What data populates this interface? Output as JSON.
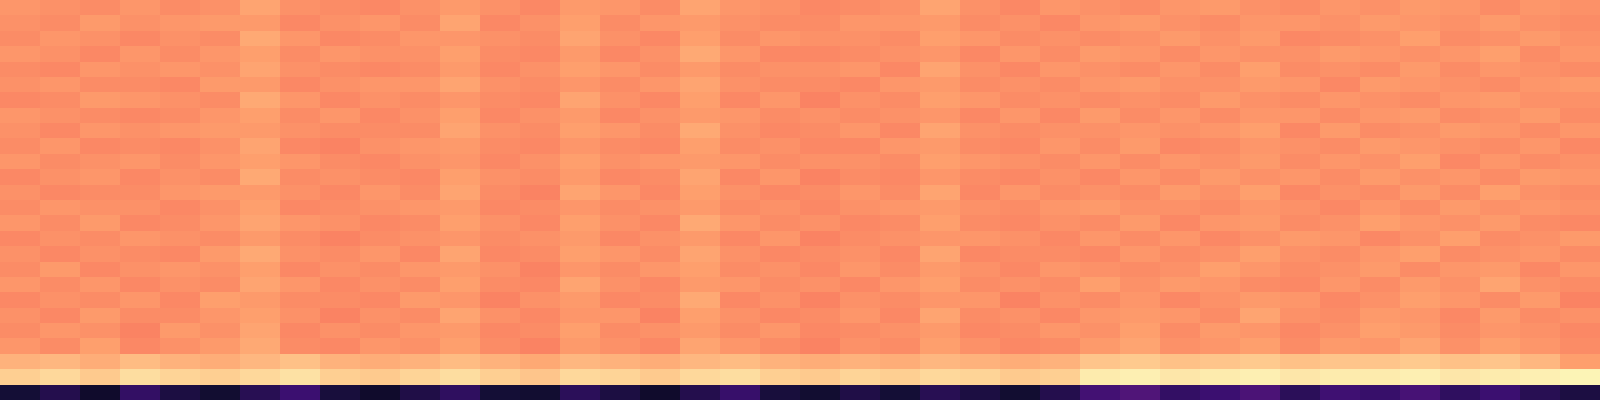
{
  "chart_data": {
    "type": "heatmap",
    "color": "magma",
    "zlim": [
      0,
      100
    ],
    "tick_labels": false,
    "cells": [
      [
        10,
        14,
        8,
        18,
        12,
        9,
        15,
        20,
        11,
        8,
        13,
        17,
        10,
        9,
        16,
        12,
        8,
        14,
        19,
        11,
        9,
        13,
        10,
        15,
        12,
        9,
        14,
        22,
        25,
        18,
        20,
        24,
        16,
        21,
        19,
        23,
        17,
        20,
        15,
        12
      ],
      [
        90,
        92,
        89,
        93,
        91,
        90,
        92,
        94,
        90,
        89,
        91,
        93,
        90,
        88,
        92,
        91,
        89,
        92,
        93,
        90,
        89,
        91,
        90,
        92,
        91,
        89,
        90,
        96,
        97,
        95,
        96,
        97,
        95,
        96,
        96,
        97,
        95,
        96,
        97,
        98
      ],
      [
        84,
        85,
        83,
        86,
        84,
        83,
        85,
        87,
        84,
        83,
        84,
        86,
        84,
        82,
        85,
        84,
        83,
        85,
        86,
        84,
        83,
        84,
        83,
        85,
        84,
        83,
        84,
        88,
        89,
        87,
        88,
        89,
        87,
        88,
        88,
        89,
        87,
        88,
        85,
        80
      ],
      [
        78,
        76,
        80,
        75,
        77,
        79,
        82,
        76,
        75,
        78,
        77,
        80,
        76,
        74,
        79,
        77,
        75,
        81,
        78,
        76,
        74,
        77,
        76,
        80,
        77,
        75,
        76,
        79,
        81,
        77,
        78,
        80,
        76,
        79,
        78,
        81,
        77,
        80,
        78,
        76
      ],
      [
        76,
        78,
        77,
        74,
        79,
        77,
        81,
        75,
        77,
        76,
        78,
        79,
        75,
        76,
        80,
        76,
        77,
        79,
        76,
        78,
        75,
        76,
        77,
        79,
        75,
        76,
        78,
        77,
        80,
        76,
        79,
        78,
        75,
        77,
        80,
        79,
        76,
        78,
        77,
        75
      ],
      [
        77,
        75,
        79,
        76,
        76,
        78,
        80,
        77,
        74,
        77,
        76,
        81,
        77,
        75,
        78,
        78,
        74,
        80,
        77,
        75,
        76,
        78,
        75,
        81,
        76,
        77,
        75,
        78,
        79,
        78,
        76,
        81,
        77,
        76,
        79,
        78,
        75,
        79,
        76,
        77
      ],
      [
        75,
        77,
        76,
        78,
        75,
        80,
        79,
        76,
        76,
        75,
        79,
        78,
        74,
        77,
        79,
        75,
        76,
        82,
        75,
        77,
        74,
        77,
        76,
        78,
        78,
        74,
        77,
        76,
        78,
        75,
        77,
        79,
        78,
        75,
        77,
        80,
        78,
        76,
        79,
        74
      ],
      [
        78,
        76,
        78,
        75,
        77,
        76,
        81,
        78,
        75,
        77,
        76,
        80,
        76,
        75,
        81,
        77,
        75,
        79,
        78,
        76,
        77,
        75,
        78,
        80,
        76,
        77,
        76,
        80,
        77,
        79,
        78,
        76,
        75,
        78,
        76,
        79,
        77,
        81,
        77,
        76
      ],
      [
        76,
        79,
        75,
        77,
        78,
        77,
        80,
        75,
        77,
        76,
        78,
        79,
        77,
        74,
        78,
        76,
        78,
        80,
        76,
        77,
        75,
        78,
        76,
        79,
        77,
        75,
        78,
        77,
        76,
        77,
        80,
        78,
        76,
        77,
        79,
        76,
        78,
        79,
        75,
        78
      ],
      [
        77,
        75,
        77,
        76,
        75,
        79,
        82,
        77,
        76,
        78,
        75,
        81,
        75,
        76,
        80,
        78,
        76,
        81,
        77,
        75,
        76,
        77,
        75,
        81,
        75,
        76,
        76,
        75,
        78,
        76,
        77,
        80,
        77,
        76,
        78,
        80,
        76,
        77,
        78,
        76
      ],
      [
        75,
        77,
        76,
        78,
        77,
        76,
        79,
        76,
        74,
        76,
        77,
        78,
        76,
        77,
        79,
        75,
        77,
        79,
        75,
        78,
        74,
        76,
        77,
        78,
        78,
        77,
        75,
        78,
        76,
        78,
        75,
        77,
        79,
        78,
        75,
        77,
        80,
        76,
        77,
        79
      ],
      [
        78,
        76,
        79,
        75,
        76,
        78,
        81,
        78,
        77,
        75,
        76,
        80,
        77,
        75,
        80,
        77,
        75,
        82,
        78,
        76,
        77,
        75,
        76,
        80,
        76,
        75,
        77,
        76,
        79,
        75,
        78,
        79,
        76,
        77,
        80,
        78,
        77,
        79,
        76,
        75
      ],
      [
        76,
        78,
        77,
        77,
        75,
        77,
        80,
        75,
        76,
        77,
        78,
        79,
        75,
        76,
        78,
        76,
        77,
        79,
        76,
        77,
        75,
        77,
        78,
        79,
        77,
        76,
        78,
        79,
        77,
        77,
        76,
        78,
        77,
        75,
        78,
        76,
        79,
        77,
        78,
        77
      ],
      [
        77,
        75,
        76,
        76,
        78,
        79,
        79,
        77,
        75,
        78,
        76,
        81,
        76,
        74,
        81,
        78,
        75,
        80,
        77,
        75,
        76,
        78,
        76,
        81,
        75,
        78,
        76,
        77,
        76,
        79,
        77,
        80,
        75,
        77,
        76,
        79,
        76,
        80,
        77,
        76
      ],
      [
        75,
        77,
        78,
        75,
        77,
        76,
        82,
        76,
        77,
        76,
        75,
        80,
        77,
        76,
        79,
        75,
        76,
        81,
        75,
        78,
        74,
        76,
        75,
        78,
        76,
        75,
        77,
        75,
        78,
        76,
        79,
        77,
        78,
        76,
        79,
        77,
        78,
        76,
        79,
        78
      ],
      [
        78,
        76,
        77,
        78,
        76,
        78,
        80,
        78,
        76,
        75,
        77,
        78,
        75,
        77,
        80,
        77,
        78,
        79,
        78,
        76,
        77,
        77,
        76,
        80,
        78,
        77,
        76,
        78,
        76,
        78,
        77,
        79,
        76,
        78,
        77,
        80,
        75,
        78,
        76,
        77
      ],
      [
        76,
        78,
        75,
        76,
        75,
        77,
        81,
        75,
        74,
        77,
        78,
        79,
        76,
        75,
        78,
        76,
        75,
        80,
        76,
        77,
        75,
        75,
        78,
        79,
        76,
        75,
        78,
        76,
        79,
        75,
        76,
        78,
        77,
        76,
        79,
        78,
        77,
        76,
        78,
        75
      ],
      [
        77,
        75,
        78,
        77,
        78,
        79,
        79,
        77,
        76,
        76,
        76,
        81,
        77,
        76,
        80,
        78,
        76,
        82,
        77,
        75,
        76,
        78,
        75,
        81,
        77,
        76,
        77,
        77,
        78,
        77,
        78,
        80,
        75,
        79,
        76,
        77,
        79,
        78,
        76,
        78
      ],
      [
        78,
        77,
        76,
        75,
        76,
        78,
        80,
        76,
        78,
        75,
        77,
        80,
        75,
        77,
        79,
        75,
        77,
        79,
        78,
        76,
        77,
        76,
        77,
        78,
        75,
        78,
        75,
        79,
        76,
        78,
        76,
        78,
        78,
        76,
        78,
        79,
        76,
        77,
        79,
        76
      ],
      [
        75,
        76,
        79,
        78,
        77,
        76,
        82,
        78,
        75,
        77,
        76,
        78,
        76,
        75,
        81,
        77,
        75,
        80,
        75,
        78,
        74,
        77,
        76,
        80,
        78,
        76,
        77,
        76,
        77,
        76,
        79,
        77,
        76,
        78,
        77,
        76,
        78,
        79,
        77,
        77
      ],
      [
        77,
        78,
        76,
        76,
        75,
        79,
        79,
        75,
        77,
        78,
        78,
        81,
        77,
        76,
        78,
        76,
        78,
        81,
        77,
        76,
        76,
        75,
        78,
        79,
        76,
        77,
        76,
        78,
        79,
        77,
        77,
        79,
        78,
        75,
        79,
        78,
        77,
        76,
        78,
        79
      ],
      [
        76,
        75,
        78,
        77,
        78,
        77,
        81,
        77,
        76,
        75,
        76,
        79,
        75,
        77,
        80,
        78,
        76,
        79,
        76,
        77,
        77,
        78,
        75,
        81,
        77,
        75,
        78,
        77,
        76,
        78,
        76,
        80,
        76,
        77,
        76,
        79,
        76,
        78,
        77,
        76
      ],
      [
        78,
        77,
        75,
        78,
        76,
        78,
        80,
        76,
        78,
        77,
        77,
        80,
        76,
        75,
        79,
        75,
        77,
        82,
        78,
        75,
        75,
        76,
        77,
        78,
        75,
        78,
        76,
        79,
        78,
        76,
        78,
        77,
        77,
        79,
        78,
        77,
        78,
        80,
        76,
        78
      ],
      [
        76,
        78,
        77,
        75,
        77,
        76,
        82,
        78,
        75,
        76,
        78,
        78,
        77,
        76,
        81,
        77,
        75,
        80,
        76,
        78,
        77,
        77,
        76,
        80,
        78,
        76,
        77,
        76,
        77,
        79,
        77,
        79,
        75,
        76,
        77,
        80,
        76,
        77,
        79,
        77
      ],
      [
        77,
        76,
        79,
        77,
        78,
        79,
        79,
        75,
        77,
        78,
        76,
        81,
        75,
        77,
        80,
        76,
        78,
        79,
        77,
        76,
        76,
        78,
        78,
        79,
        76,
        77,
        75,
        78,
        79,
        77,
        76,
        78,
        78,
        77,
        79,
        78,
        77,
        79,
        77,
        76
      ],
      [
        78,
        77,
        76,
        78,
        76,
        77,
        81,
        77,
        76,
        75,
        77,
        79,
        77,
        75,
        79,
        78,
        76,
        81,
        78,
        77,
        75,
        76,
        77,
        81,
        77,
        75,
        78,
        77,
        76,
        78,
        79,
        77,
        76,
        78,
        77,
        79,
        78,
        76,
        78,
        77
      ]
    ]
  }
}
